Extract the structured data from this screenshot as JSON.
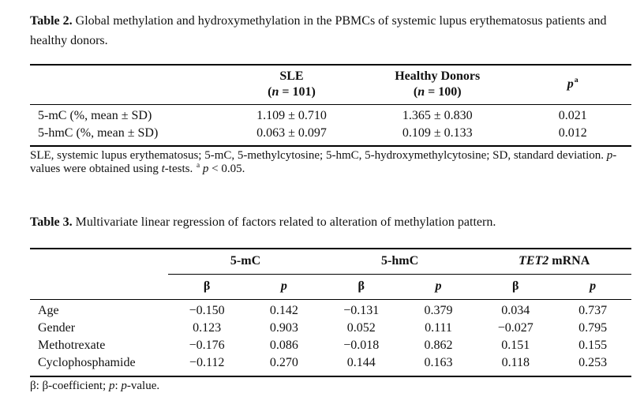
{
  "table2": {
    "caption_label": "Table 2.",
    "caption_text": " Global methylation and hydroxymethylation in the PBMCs of systemic lupus erythematosus patients and healthy donors.",
    "columns": {
      "sle_line1": "SLE",
      "sle_line2_parts": [
        {
          "text": "("
        },
        {
          "text": "n",
          "style": "italic"
        },
        {
          "text": " = 101)"
        }
      ],
      "healthy_line1": "Healthy Donors",
      "healthy_line2_parts": [
        {
          "text": "("
        },
        {
          "text": "n",
          "style": "italic"
        },
        {
          "text": " = 100)"
        }
      ],
      "p_parts": [
        {
          "text": "p",
          "style": "italic"
        },
        {
          "text": "a",
          "style": "sup"
        }
      ]
    },
    "rows": [
      {
        "label": "5-mC (%, mean ± SD)",
        "sle": "1.109 ± 0.710",
        "healthy": "1.365 ± 0.830",
        "p": "0.021"
      },
      {
        "label": "5-hmC (%, mean ± SD)",
        "sle": "0.063 ± 0.097",
        "healthy": "0.109 ± 0.133",
        "p": "0.012"
      }
    ],
    "footnote_parts": [
      {
        "text": "SLE, systemic lupus erythematosus; 5-mC, 5-methylcytosine; 5-hmC, 5-hydroxymethylcytosine; SD, standard deviation. "
      },
      {
        "text": "p",
        "style": "italic"
      },
      {
        "text": "-values were obtained using "
      },
      {
        "text": "t",
        "style": "italic"
      },
      {
        "text": "-tests. "
      },
      {
        "text": "a",
        "style": "sup"
      },
      {
        "text": " "
      },
      {
        "text": "p",
        "style": "italic"
      },
      {
        "text": " < 0.05."
      }
    ]
  },
  "table3": {
    "caption_label": "Table 3.",
    "caption_text": " Multivariate linear regression of factors related to alteration of methylation pattern.",
    "groups": {
      "mc": "5-mC",
      "hmc": "5-hmC",
      "tet2_parts": [
        {
          "text": "TET2",
          "style": "italic"
        },
        {
          "text": " mRNA"
        }
      ]
    },
    "subheaders": {
      "beta": "β",
      "p": "p"
    },
    "rows": [
      {
        "label": "Age",
        "values": [
          "−0.150",
          "0.142",
          "−0.131",
          "0.379",
          "0.034",
          "0.737"
        ]
      },
      {
        "label": "Gender",
        "values": [
          "0.123",
          "0.903",
          "0.052",
          "0.111",
          "−0.027",
          "0.795"
        ]
      },
      {
        "label": "Methotrexate",
        "values": [
          "−0.176",
          "0.086",
          "−0.018",
          "0.862",
          "0.151",
          "0.155"
        ]
      },
      {
        "label": "Cyclophosphamide",
        "values": [
          "−0.112",
          "0.270",
          "0.144",
          "0.163",
          "0.118",
          "0.253"
        ]
      }
    ],
    "footnote_parts": [
      {
        "text": "β: β-coefficient; "
      },
      {
        "text": "p",
        "style": "italic"
      },
      {
        "text": ": "
      },
      {
        "text": "p",
        "style": "italic"
      },
      {
        "text": "-value."
      }
    ]
  }
}
